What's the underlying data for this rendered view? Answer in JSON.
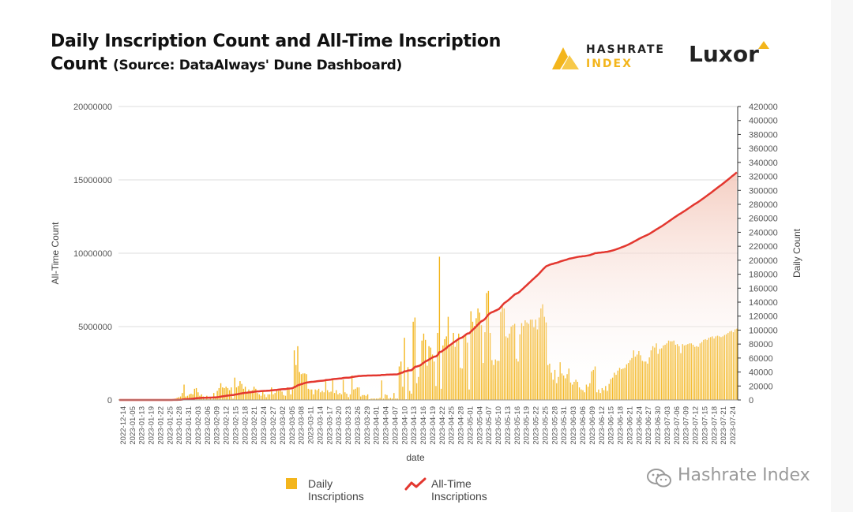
{
  "header": {
    "title_line1": "Daily Inscription Count and All-Time Inscription",
    "title_line2": "Count",
    "subtitle": "(Source: DataAlways' Dune Dashboard)"
  },
  "logos": {
    "hashrate_word1": "HASHRATE",
    "hashrate_word2": "INDEX",
    "luxor": "Luxor"
  },
  "watermark": "Hashrate Index",
  "colors": {
    "bar": "#f3b51c",
    "line": "#e3372f",
    "area_top": "#f3c6b8",
    "grid": "#dddddd"
  },
  "legend": {
    "bar_label": "Daily Inscriptions",
    "line_label": "All-Time Inscriptions"
  },
  "chart_data": {
    "type": "bar",
    "xlabel": "date",
    "ylabel_left": "All-Time Count",
    "ylabel_right": "Daily Count",
    "left_axis": {
      "min": 0,
      "max": 20000000,
      "ticks": [
        0,
        5000000,
        10000000,
        15000000,
        20000000
      ]
    },
    "right_axis": {
      "min": 0,
      "max": 420000,
      "ticks": [
        0,
        20000,
        40000,
        60000,
        80000,
        100000,
        120000,
        140000,
        160000,
        180000,
        200000,
        220000,
        240000,
        260000,
        280000,
        300000,
        320000,
        340000,
        360000,
        380000,
        400000,
        420000
      ]
    },
    "grid": true,
    "legend_position": "bottom",
    "x_tick_labels": [
      "2022-12-14",
      "2023-01-05",
      "2023-01-13",
      "2023-01-19",
      "2023-01-22",
      "2023-01-25",
      "2023-01-28",
      "2023-01-31",
      "2023-02-03",
      "2023-02-06",
      "2023-02-09",
      "2023-02-12",
      "2023-02-15",
      "2023-02-18",
      "2023-02-21",
      "2023-02-24",
      "2023-02-27",
      "2023-03-02",
      "2023-03-05",
      "2023-03-08",
      "2023-03-11",
      "2023-03-14",
      "2023-03-17",
      "2023-03-20",
      "2023-03-23",
      "2023-03-26",
      "2023-03-29",
      "2023-04-01",
      "2023-04-04",
      "2023-04-07",
      "2023-04-10",
      "2023-04-13",
      "2023-04-16",
      "2023-04-19",
      "2023-04-22",
      "2023-04-25",
      "2023-04-28",
      "2023-05-01",
      "2023-05-04",
      "2023-05-07",
      "2023-05-10",
      "2023-05-13",
      "2023-05-16",
      "2023-05-19",
      "2023-05-22",
      "2023-05-25",
      "2023-05-28",
      "2023-05-31",
      "2023-06-03",
      "2023-06-06",
      "2023-06-09",
      "2023-06-12",
      "2023-06-15",
      "2023-06-18",
      "2023-06-21",
      "2023-06-24",
      "2023-06-27",
      "2023-06-30",
      "2023-07-03",
      "2023-07-06",
      "2023-07-09",
      "2023-07-12",
      "2023-07-15",
      "2023-07-18",
      "2023-07-21",
      "2023-07-24"
    ],
    "series": [
      {
        "name": "Daily Inscriptions",
        "axis": "right",
        "values": [
          1000,
          0,
          0,
          0,
          0,
          0,
          0,
          0,
          0,
          0,
          0,
          0,
          0,
          0,
          0,
          0,
          0,
          0,
          0,
          0,
          0,
          0,
          0,
          0,
          0,
          0,
          0,
          0,
          0,
          0,
          1000,
          1000,
          2000,
          3000,
          4000,
          5000,
          10000,
          22000,
          5000,
          6000,
          8000,
          9000,
          8000,
          16000,
          17000,
          11000,
          6000,
          8000,
          5000,
          1000,
          6000,
          1000,
          4000,
          1000,
          10000,
          4000,
          13000,
          17000,
          24000,
          18000,
          17000,
          19000,
          17000,
          14000,
          18000,
          2000,
          32000,
          18000,
          20000,
          27000,
          23000,
          16000,
          19000,
          10000,
          15000,
          13000,
          14000,
          19000,
          16000,
          10000,
          8000,
          6000,
          12000,
          8000,
          4000,
          8000,
          8000,
          18000,
          8000,
          10000,
          14000,
          13000,
          16000,
          12000,
          7000,
          6000,
          18000,
          16000,
          8000,
          15000,
          71000,
          50000,
          77000,
          40000,
          37000,
          38000,
          38000,
          37000,
          16000,
          15000,
          15000,
          8000,
          15000,
          14000,
          16000,
          11000,
          13000,
          11000,
          30000,
          14000,
          11000,
          12000,
          29000,
          10000,
          14000,
          8000,
          10000,
          8000,
          29000,
          11000,
          9000,
          4000,
          8000,
          35000,
          15000,
          16000,
          18000,
          18000,
          5000,
          7000,
          7000,
          6000,
          8000,
          1000,
          2000,
          2000,
          2000,
          2000,
          2000,
          3000,
          28000,
          2000,
          8000,
          7000,
          2000,
          3000,
          2000,
          10000,
          2000,
          2000,
          48000,
          55000,
          19000,
          89000,
          1000,
          47000,
          13000,
          9000,
          112000,
          118000,
          24000,
          33000,
          49000,
          85000,
          95000,
          86000,
          49000,
          77000,
          75000,
          65000,
          55000,
          20000,
          96000,
          205000,
          16000,
          78000,
          87000,
          91000,
          119000,
          78000,
          78000,
          96000,
          76000,
          84000,
          95000,
          46000,
          45000,
          92000,
          93000,
          82000,
          15000,
          127000,
          112000,
          106000,
          117000,
          131000,
          125000,
          107000,
          53000,
          97000,
          153000,
          156000,
          96000,
          57000,
          50000,
          58000,
          56000,
          56000,
          126000,
          136000,
          131000,
          91000,
          89000,
          95000,
          105000,
          107000,
          109000,
          59000,
          55000,
          94000,
          110000,
          106000,
          114000,
          111000,
          109000,
          115000,
          115000,
          104000,
          115000,
          101000,
          118000,
          131000,
          137000,
          119000,
          111000,
          50000,
          52000,
          39000,
          29000,
          43000,
          24000,
          33000,
          54000,
          38000,
          35000,
          31000,
          37000,
          45000,
          25000,
          22000,
          26000,
          29000,
          26000,
          18000,
          15000,
          14000,
          11000,
          22000,
          19000,
          24000,
          41000,
          43000,
          48000,
          11000,
          15000,
          10000,
          17000,
          14000,
          20000,
          13000,
          23000,
          30000,
          32000,
          39000,
          36000,
          42000,
          46000,
          44000,
          45000,
          46000,
          51000,
          53000,
          57000,
          60000,
          71000,
          62000,
          65000,
          70000,
          64000,
          56000,
          55000,
          55000,
          52000,
          61000,
          71000,
          77000,
          75000,
          81000,
          66000,
          73000,
          74000,
          78000,
          79000,
          81000,
          85000,
          84000,
          84000,
          85000,
          79000,
          80000,
          77000,
          67000,
          80000,
          78000,
          79000,
          80000,
          81000,
          81000,
          79000,
          76000,
          77000,
          76000,
          81000,
          83000,
          86000,
          87000,
          86000,
          89000,
          90000,
          91000,
          88000,
          91000,
          92000,
          91000,
          90000,
          91000,
          93000,
          94000,
          96000,
          98000,
          99000,
          97000,
          101000,
          102000
        ]
      },
      {
        "name": "All-Time Inscriptions",
        "axis": "left",
        "values": []
      }
    ]
  }
}
